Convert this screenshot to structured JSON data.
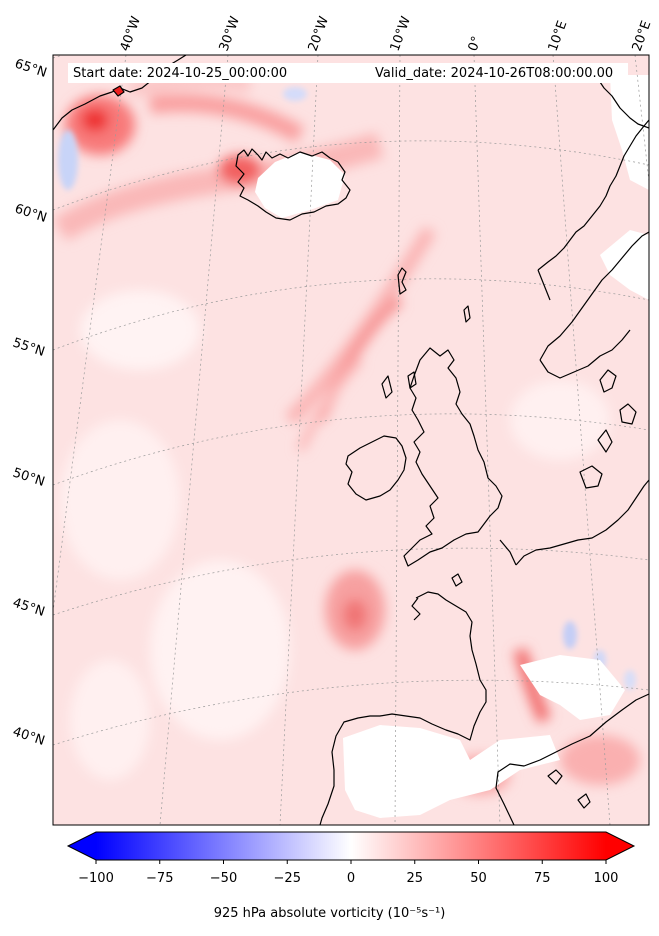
{
  "header": {
    "start_date": "Start date: 2024-10-25_00:00:00",
    "valid_date": "Valid_date: 2024-10-26T08:00:00.00"
  },
  "map": {
    "projection": "lambert-conformal",
    "field": "925 hPa absolute vorticity",
    "longitude_labels": [
      "40°W",
      "30°W",
      "20°W",
      "10°W",
      "0°",
      "10°E",
      "20°E"
    ],
    "latitude_labels": [
      "65°N",
      "60°N",
      "55°N",
      "50°N",
      "45°N",
      "40°N"
    ],
    "gridlines": "dotted-grey",
    "coastline_color": "#000000"
  },
  "colorbar": {
    "title": "925 hPa absolute vorticity (10⁻⁵s⁻¹)",
    "ticks": [
      "−100",
      "−75",
      "−50",
      "−25",
      "0",
      "25",
      "50",
      "75",
      "100"
    ],
    "range": [
      -100,
      100
    ],
    "extend": "both",
    "cmap": "bwr",
    "min_color": "#0000ff",
    "mid_color": "#ffffff",
    "max_color": "#ff0000"
  }
}
